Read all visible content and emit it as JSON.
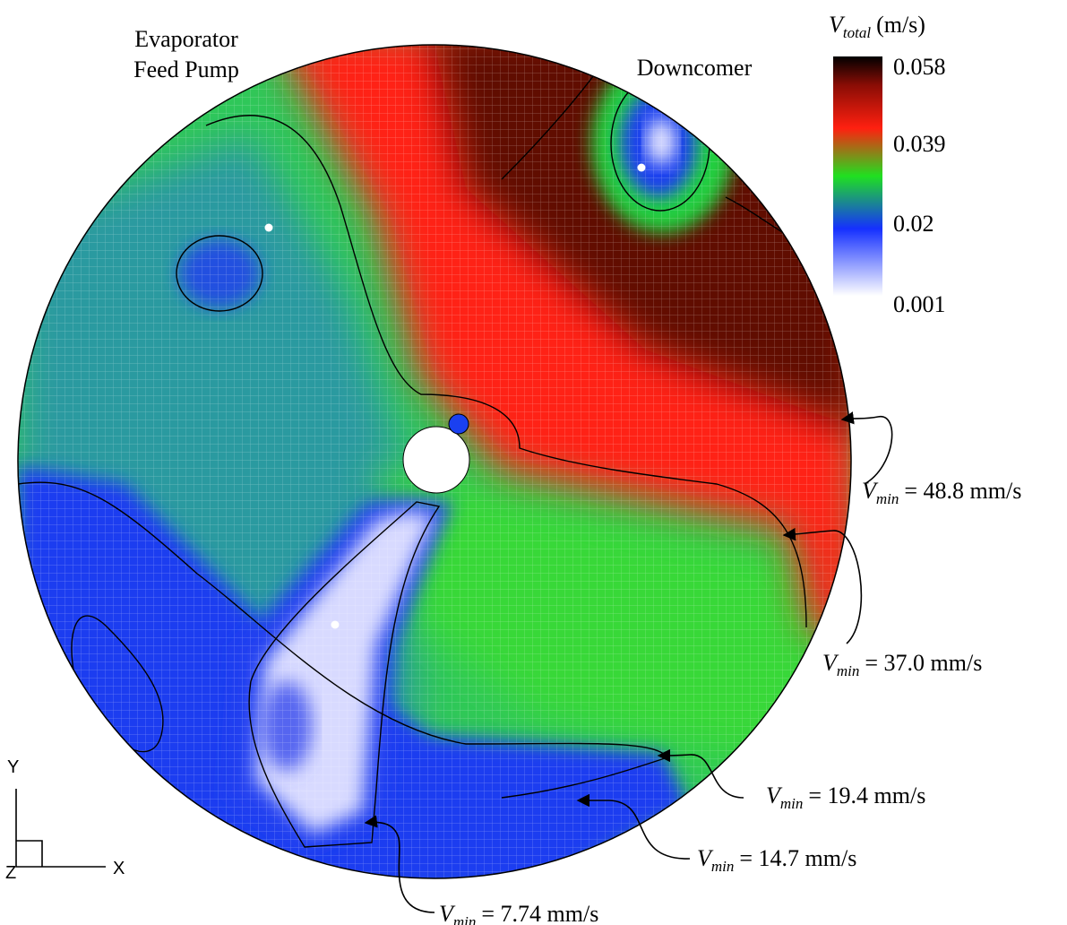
{
  "labels": {
    "pump_line1": "Evaporator",
    "pump_line2": "Feed Pump",
    "downcomer": "Downcomer"
  },
  "colorbar": {
    "symbol": "V",
    "subscript": "total",
    "unit": "(m/s)",
    "ticks": [
      "0.058",
      "0.039",
      "0.02",
      "0.001"
    ]
  },
  "annotations": [
    {
      "symbol": "V",
      "subscript": "min",
      "text": "= 48.8 mm/s"
    },
    {
      "symbol": "V",
      "subscript": "min",
      "text": "= 37.0 mm/s"
    },
    {
      "symbol": "V",
      "subscript": "min",
      "text": "= 19.4 mm/s"
    },
    {
      "symbol": "V",
      "subscript": "min",
      "text": "= 14.7 mm/s"
    },
    {
      "symbol": "V",
      "subscript": "min",
      "text": "= 7.74 mm/s"
    }
  ],
  "axes": {
    "y": "Y",
    "x": "X",
    "z": "Z"
  }
}
